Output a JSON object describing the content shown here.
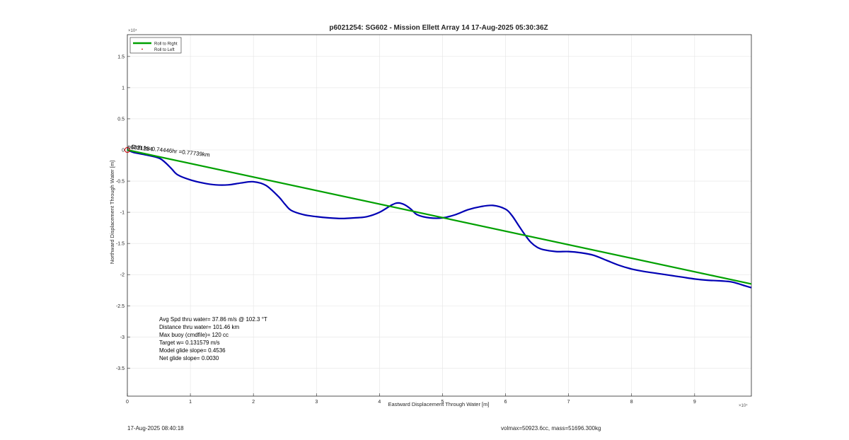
{
  "chart_data": {
    "type": "line",
    "title": "p6021254: SG602 - Mission Ellett Array 14 17-Aug-2025 05:30:36Z",
    "xlabel": "Eastward Displacement Through Water [m]",
    "ylabel": "Northward Displacement Through Water [m]",
    "x_exponent_label": "×10⁴",
    "y_exponent_label": "×10⁴",
    "xlim": [
      0,
      99000
    ],
    "ylim": [
      -39500,
      18500
    ],
    "xticks": [
      0,
      10000,
      20000,
      30000,
      40000,
      50000,
      60000,
      70000,
      80000,
      90000
    ],
    "xtick_labels": [
      "0",
      "1",
      "2",
      "3",
      "4",
      "5",
      "6",
      "7",
      "8",
      "9"
    ],
    "yticks": [
      15000,
      10000,
      5000,
      0,
      -5000,
      -10000,
      -15000,
      -20000,
      -25000,
      -30000,
      -35000
    ],
    "ytick_labels": [
      "1.5",
      "1",
      "0.5",
      "0",
      "-0.5",
      "-1",
      "-1.5",
      "-2",
      "-2.5",
      "-3",
      "-3.5"
    ],
    "grid": true,
    "legend_position": "top-left",
    "legend": [
      {
        "label": "Roll to Right",
        "color": "#00a000",
        "style": "line"
      },
      {
        "label": "Roll to Left",
        "color": "#d00000",
        "style": "marker"
      }
    ],
    "series": [
      {
        "color": "#0000b4",
        "x": [
          0,
          1000,
          3000,
          5000,
          6000,
          7000,
          8000,
          10000,
          12000,
          14000,
          16000,
          18000,
          20000,
          22000,
          24000,
          25000,
          26000,
          28000,
          30000,
          32000,
          34000,
          36000,
          38000,
          40000,
          42000,
          43000,
          44000,
          45000,
          46000,
          48000,
          50000,
          52000,
          54000,
          56000,
          58000,
          60000,
          61000,
          62000,
          63000,
          64000,
          65000,
          66000,
          68000,
          70000,
          72000,
          74000,
          76000,
          78000,
          80000,
          82000,
          84000,
          86000,
          88000,
          90000,
          92000,
          94000,
          96000,
          98000,
          99000
        ],
        "y": [
          0,
          -400,
          -800,
          -1300,
          -2000,
          -3000,
          -4000,
          -4800,
          -5300,
          -5600,
          -5600,
          -5300,
          -5100,
          -5700,
          -7500,
          -8700,
          -9700,
          -10400,
          -10700,
          -10900,
          -11000,
          -10900,
          -10700,
          -10000,
          -8800,
          -8500,
          -8800,
          -9500,
          -10400,
          -10900,
          -10900,
          -10400,
          -9600,
          -9100,
          -8900,
          -9500,
          -10500,
          -12000,
          -13500,
          -14800,
          -15600,
          -16000,
          -16300,
          -16300,
          -16500,
          -16900,
          -17700,
          -18500,
          -19100,
          -19500,
          -19800,
          -20100,
          -20400,
          -20700,
          -20900,
          -21000,
          -21200,
          -21800,
          -22100
        ]
      },
      {
        "color": "#00a000",
        "x": [
          0,
          99000
        ],
        "y": [
          0,
          -21500
        ]
      }
    ],
    "markers": [
      {
        "x": 0,
        "y": 0,
        "color": "#d00000"
      }
    ],
    "annotations": {
      "start_label": "p6021254",
      "slant_label": "Drift for 0.74446hr =0.77739km",
      "stats_lines": [
        "Avg Spd thru water= 37.86 m/s @ 102.3 °T",
        "Distance thru water= 101.46 km",
        "Max buoy (cmdfile)= 120 cc",
        "Target w= 0.131579 m/s",
        "Model glide slope= 0.4536",
        "Net glide slope= 0.0030"
      ]
    }
  },
  "footer": {
    "timestamp": "17-Aug-2025 08:40:18",
    "volmax_mass": "volmax=50923.6cc, mass=51696.300kg"
  }
}
